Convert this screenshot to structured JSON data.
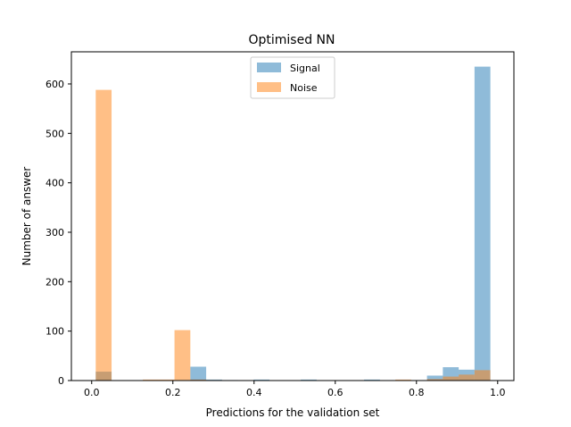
{
  "chart_data": {
    "type": "bar",
    "title": "Optimised NN",
    "xlabel": "Predictions for the validation set",
    "ylabel": "Number of answer",
    "xlim": [
      -0.05,
      1.04
    ],
    "ylim": [
      0,
      665
    ],
    "xticks": [
      0.0,
      0.2,
      0.4,
      0.6,
      0.8,
      1.0
    ],
    "xtick_labels": [
      "0.0",
      "0.2",
      "0.4",
      "0.6",
      "0.8",
      "1.0"
    ],
    "yticks": [
      0,
      100,
      200,
      300,
      400,
      500,
      600
    ],
    "ytick_labels": [
      "0",
      "100",
      "200",
      "300",
      "400",
      "500",
      "600"
    ],
    "grid": false,
    "legend_position": "top-center",
    "series": [
      {
        "name": "Signal",
        "color": "#1f77b4",
        "alpha": 0.5,
        "bins": [
          {
            "x0": 0.01,
            "x1": 0.049,
            "value": 18
          },
          {
            "x0": 0.243,
            "x1": 0.282,
            "value": 28
          },
          {
            "x0": 0.282,
            "x1": 0.321,
            "value": 2
          },
          {
            "x0": 0.321,
            "x1": 0.36,
            "value": 1
          },
          {
            "x0": 0.399,
            "x1": 0.438,
            "value": 2
          },
          {
            "x0": 0.515,
            "x1": 0.554,
            "value": 2
          },
          {
            "x0": 0.671,
            "x1": 0.71,
            "value": 2
          },
          {
            "x0": 0.826,
            "x1": 0.865,
            "value": 10
          },
          {
            "x0": 0.865,
            "x1": 0.904,
            "value": 27
          },
          {
            "x0": 0.904,
            "x1": 0.943,
            "value": 22
          },
          {
            "x0": 0.943,
            "x1": 0.982,
            "value": 635
          }
        ]
      },
      {
        "name": "Noise",
        "color": "#ff7f0e",
        "alpha": 0.5,
        "bins": [
          {
            "x0": 0.01,
            "x1": 0.049,
            "value": 588
          },
          {
            "x0": 0.126,
            "x1": 0.165,
            "value": 2
          },
          {
            "x0": 0.165,
            "x1": 0.204,
            "value": 2
          },
          {
            "x0": 0.204,
            "x1": 0.243,
            "value": 102
          },
          {
            "x0": 0.243,
            "x1": 0.282,
            "value": 2
          },
          {
            "x0": 0.282,
            "x1": 0.321,
            "value": 1
          },
          {
            "x0": 0.748,
            "x1": 0.787,
            "value": 2
          },
          {
            "x0": 0.826,
            "x1": 0.865,
            "value": 3
          },
          {
            "x0": 0.865,
            "x1": 0.904,
            "value": 8
          },
          {
            "x0": 0.904,
            "x1": 0.943,
            "value": 12
          },
          {
            "x0": 0.943,
            "x1": 0.982,
            "value": 21
          }
        ]
      }
    ]
  }
}
